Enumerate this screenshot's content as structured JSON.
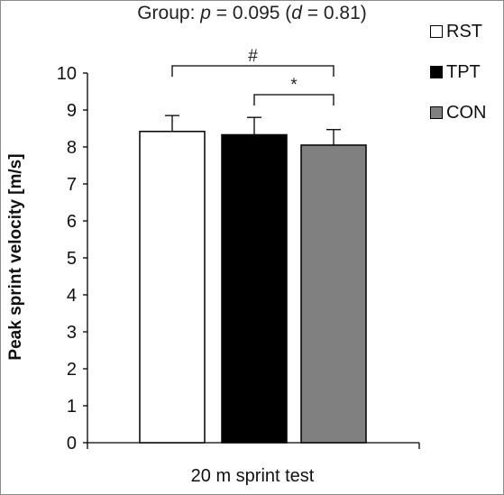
{
  "chart_data": {
    "type": "bar",
    "title_prefix": "Group: ",
    "title_p_symbol": "p",
    "title_p_value": " = 0.095 (",
    "title_d_symbol": "d",
    "title_d_value": " = 0.81)",
    "xlabel": "20 m sprint test",
    "ylabel": "Peak sprint velocity [m/s]",
    "ylim": [
      0,
      10
    ],
    "yticks": [
      "0",
      "1",
      "2",
      "3",
      "4",
      "5",
      "6",
      "7",
      "8",
      "9",
      "10"
    ],
    "grid": false,
    "legend_position": "top-right",
    "series": [
      {
        "name": "RST",
        "value": 8.42,
        "error": 0.43,
        "color": "#ffffff"
      },
      {
        "name": "TPT",
        "value": 8.33,
        "error": 0.47,
        "color": "#000000"
      },
      {
        "name": "CON",
        "value": 8.05,
        "error": 0.42,
        "color": "#808080"
      }
    ],
    "annotations": [
      {
        "label": "#",
        "from": "RST",
        "to": "CON"
      },
      {
        "label": "*",
        "from": "TPT",
        "to": "CON"
      }
    ]
  }
}
